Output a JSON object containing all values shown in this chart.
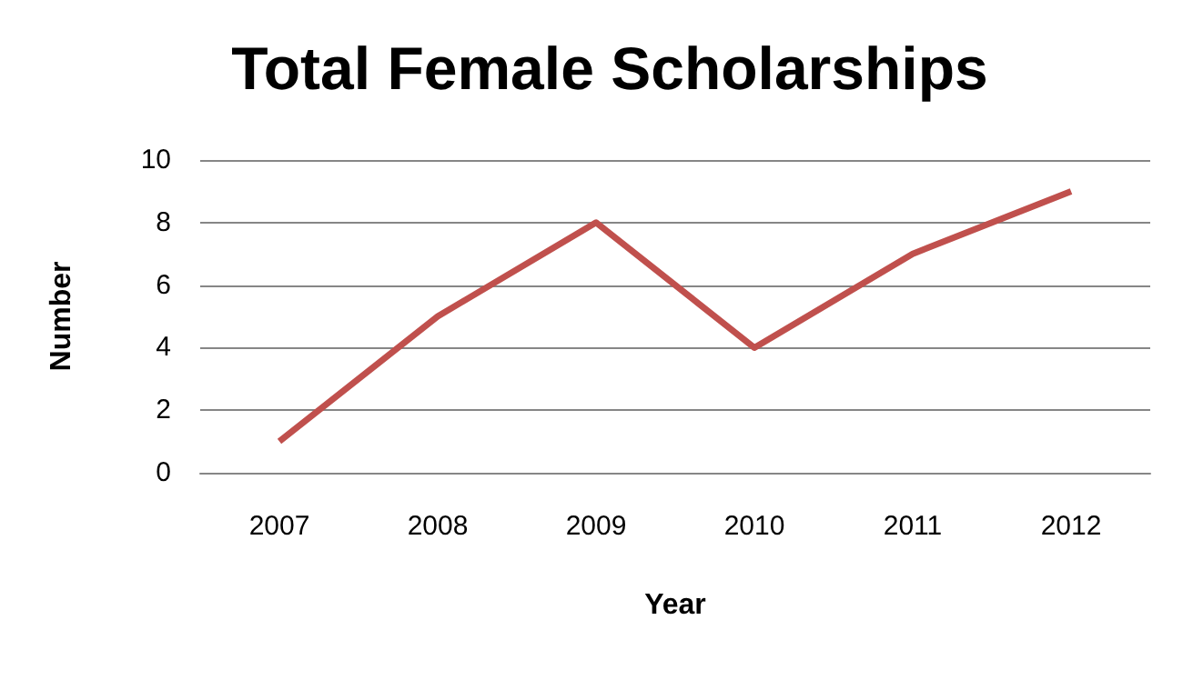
{
  "chart_data": {
    "type": "line",
    "title": "Total Female Scholarships",
    "xlabel": "Year",
    "ylabel": "Number",
    "categories": [
      "2007",
      "2008",
      "2009",
      "2010",
      "2011",
      "2012"
    ],
    "series": [
      {
        "color": "#c0504d",
        "values": [
          1,
          5,
          8,
          4,
          7,
          9
        ]
      }
    ],
    "ylim": [
      0,
      10
    ],
    "yticks": [
      0,
      2,
      4,
      6,
      8,
      10
    ],
    "grid": "y",
    "marker": "none",
    "line_style": "solid"
  }
}
